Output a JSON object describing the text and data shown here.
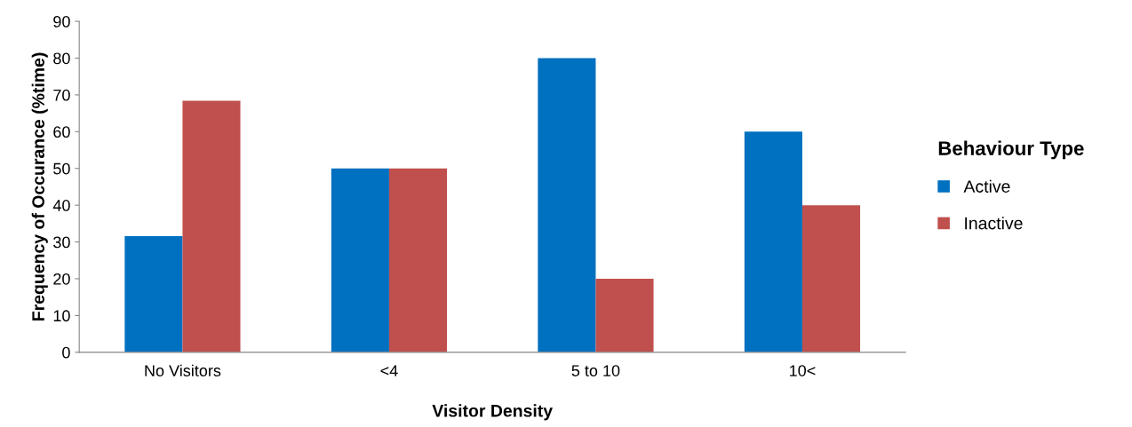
{
  "chart_data": {
    "type": "bar",
    "xlabel": "Visitor Density",
    "ylabel": "Frequency of Occurance (%time)",
    "legend_title": "Behaviour Type",
    "categories": [
      "No Visitors",
      "<4",
      "5 to 10",
      "10<"
    ],
    "series": [
      {
        "name": "Active",
        "color": "#0070c0",
        "values": [
          31.6,
          50,
          80,
          60
        ]
      },
      {
        "name": "Inactive",
        "color": "#c0504d",
        "values": [
          68.4,
          50,
          20,
          40
        ]
      }
    ],
    "ylim": [
      0,
      90
    ],
    "yticks": [
      0,
      10,
      20,
      30,
      40,
      50,
      60,
      70,
      80,
      90
    ],
    "grid": false,
    "legend": "right"
  }
}
